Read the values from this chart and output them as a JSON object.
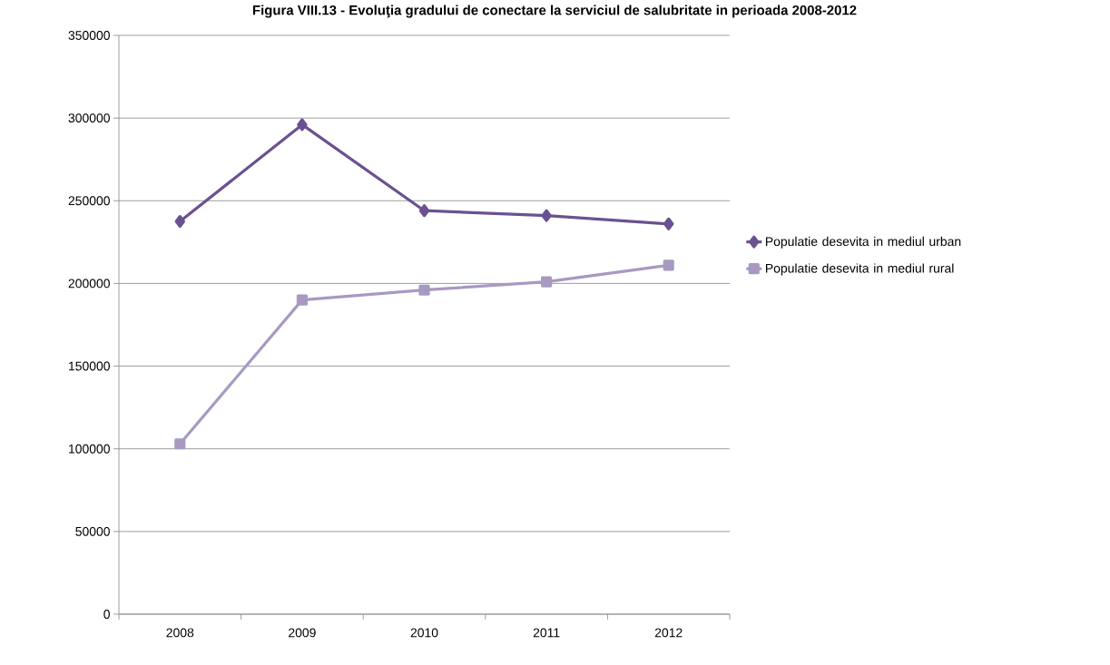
{
  "chart_data": {
    "type": "line",
    "title": "Figura VIII.13 - Evoluţia gradului de conectare la serviciul de salubritate in perioada 2008-2012",
    "categories": [
      "2008",
      "2009",
      "2010",
      "2011",
      "2012"
    ],
    "series": [
      {
        "name": "Populatie desevita in mediul urban",
        "color": "#6a5191",
        "marker": "diamond",
        "values": [
          237500,
          296000,
          244000,
          241000,
          236000
        ]
      },
      {
        "name": "Populatie desevita in mediul rural",
        "color": "#a899c2",
        "marker": "square",
        "values": [
          103000,
          190000,
          196000,
          201000,
          211000
        ]
      }
    ],
    "ylim": [
      0,
      350000
    ],
    "yticks": [
      0,
      50000,
      100000,
      150000,
      200000,
      250000,
      300000,
      350000
    ],
    "grid": "y",
    "legend": "right",
    "line_style": "solid"
  }
}
